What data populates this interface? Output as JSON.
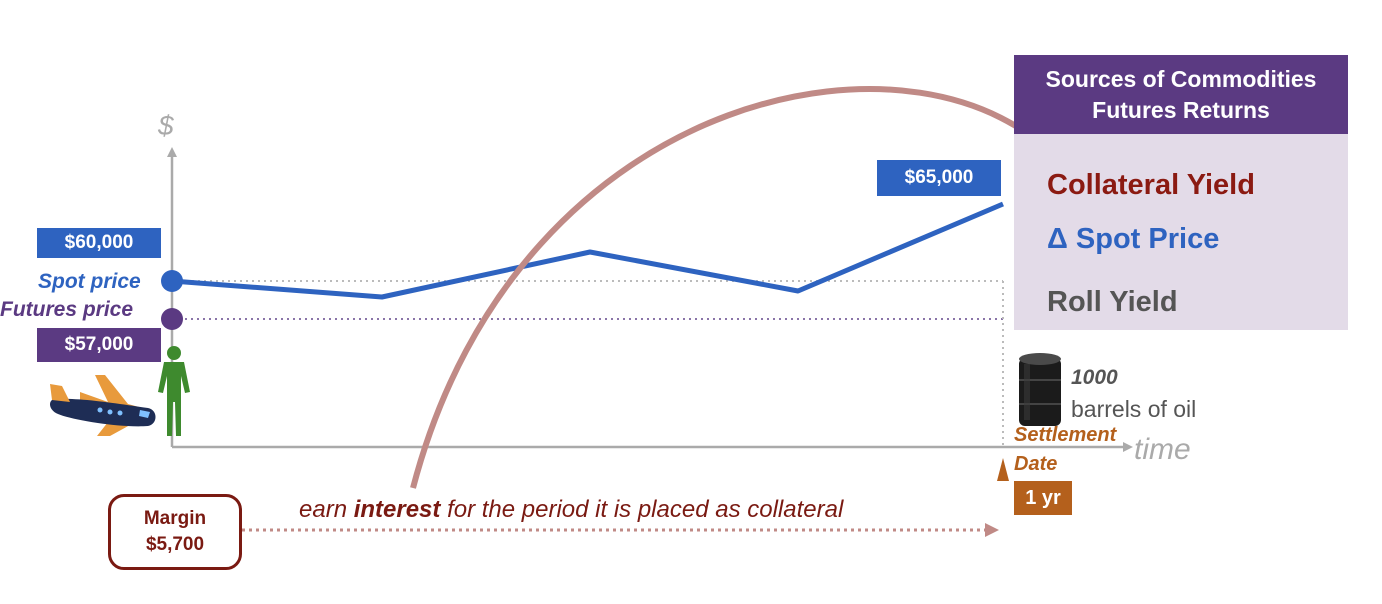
{
  "axis": {
    "y_symbol": "$",
    "x_label": "time"
  },
  "prices": {
    "spot_start_value": "$60,000",
    "spot_label": "Spot price",
    "futures_label": "Futures price",
    "futures_value": "$57,000",
    "spot_end_value": "$65,000"
  },
  "panel": {
    "title_line1": "Sources of Commodities",
    "title_line2": "Futures Returns",
    "items": [
      {
        "label": "Collateral Yield",
        "color": "#8b1a12"
      },
      {
        "label": "Δ Spot Price",
        "color": "#2e63c0"
      },
      {
        "label": "Roll Yield",
        "color": "#555555"
      }
    ]
  },
  "underlying": {
    "quantity": "1000",
    "unit": "barrels of oil"
  },
  "settlement": {
    "line1": "Settlement",
    "line2": "Date",
    "term": "1 yr"
  },
  "margin": {
    "line1": "Margin",
    "line2": "$5,700"
  },
  "interest_note": {
    "before": "earn ",
    "bold": "interest",
    "after": " for the period it is placed as collateral"
  },
  "colors": {
    "spot_blue": "#2e63c0",
    "futures_purple": "#5b3a82",
    "collateral_red": "#8b1a12",
    "arc": "#c08a86",
    "settlement_orange": "#b4601c",
    "figure_green": "#3e8a2e"
  }
}
